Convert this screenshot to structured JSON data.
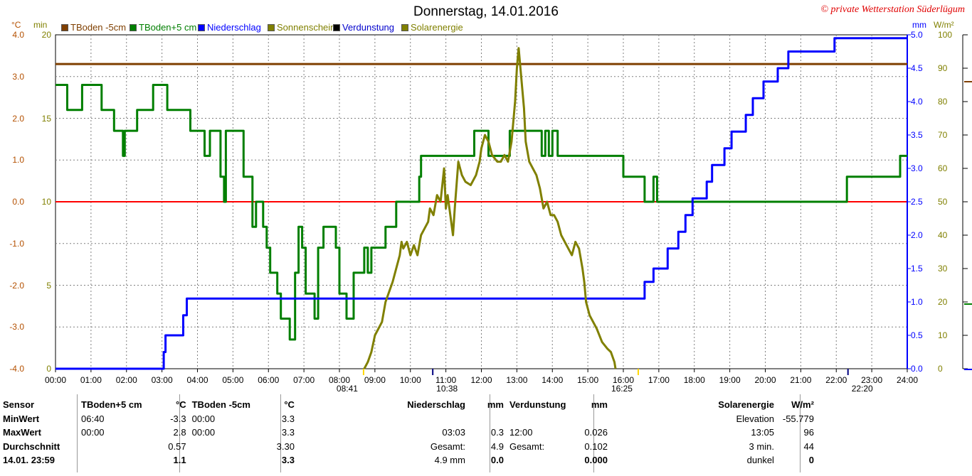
{
  "page": {
    "title": "Donnerstag, 14.01.2016",
    "copyright": "© private Wetterstation Süderlügum"
  },
  "units": {
    "celsius": "°C",
    "minutes": "min",
    "mm": "mm",
    "wm2": "W/m²"
  },
  "legend": [
    {
      "label": "TBoden -5cm",
      "color": "#7f3f00"
    },
    {
      "label": "TBoden+5 cm",
      "color": "#007f00"
    },
    {
      "label": "Niederschlag",
      "color": "#0000ff"
    },
    {
      "label": "Sonnenschein",
      "color": "#808000"
    },
    {
      "label": "Verdunstung",
      "color": "#000000"
    },
    {
      "label": "Solarenergie",
      "color": "#808000"
    }
  ],
  "chart_data": {
    "type": "line",
    "x_ticks": [
      "00:00",
      "01:00",
      "02:00",
      "03:00",
      "04:00",
      "05:00",
      "06:00",
      "07:00",
      "08:00",
      "09:00",
      "10:00",
      "11:00",
      "12:00",
      "13:00",
      "14:00",
      "15:00",
      "16:00",
      "17:00",
      "18:00",
      "19:00",
      "20:00",
      "21:00",
      "22:00",
      "23:00",
      "24:00"
    ],
    "y_left_celsius_ticks": [
      "4.0",
      "3.0",
      "2.0",
      "1.0",
      "0.0",
      "-1.0",
      "-2.0",
      "-3.0",
      "-4.0"
    ],
    "y_left_minutes_ticks": [
      "20",
      "15",
      "10",
      "5",
      "0"
    ],
    "y_right_mm_ticks": [
      "5.0",
      "4.5",
      "4.0",
      "3.5",
      "3.0",
      "2.5",
      "2.0",
      "1.5",
      "1.0",
      "0.5",
      "0.0"
    ],
    "y_right_wm2_ticks": [
      "100",
      "90",
      "80",
      "70",
      "60",
      "50",
      "40",
      "30",
      "20",
      "10",
      "0"
    ],
    "ylim_celsius": [
      -4,
      4
    ],
    "ylim_minutes": [
      0,
      20
    ],
    "ylim_mm": [
      0,
      5
    ],
    "ylim_wm2": [
      0,
      100
    ],
    "grid": true,
    "series": [
      {
        "name": "TBoden -5cm",
        "axis": "celsius",
        "color": "#7f3f00",
        "points": [
          [
            0,
            3.3
          ],
          [
            24,
            3.3
          ]
        ]
      },
      {
        "name": "TBoden+5 cm",
        "axis": "celsius",
        "color": "#007f00",
        "points": [
          [
            0,
            2.8
          ],
          [
            0.33,
            2.8
          ],
          [
            0.33,
            2.2
          ],
          [
            0.75,
            2.2
          ],
          [
            0.75,
            2.8
          ],
          [
            1.3,
            2.8
          ],
          [
            1.3,
            2.2
          ],
          [
            1.65,
            2.2
          ],
          [
            1.65,
            1.7
          ],
          [
            1.9,
            1.7
          ],
          [
            1.9,
            1.1
          ],
          [
            1.95,
            1.1
          ],
          [
            1.95,
            1.7
          ],
          [
            2.3,
            1.7
          ],
          [
            2.3,
            2.2
          ],
          [
            2.75,
            2.2
          ],
          [
            2.75,
            2.8
          ],
          [
            3.15,
            2.8
          ],
          [
            3.15,
            2.2
          ],
          [
            3.8,
            2.2
          ],
          [
            3.8,
            1.7
          ],
          [
            4.2,
            1.7
          ],
          [
            4.2,
            1.1
          ],
          [
            4.35,
            1.1
          ],
          [
            4.35,
            1.7
          ],
          [
            4.65,
            1.7
          ],
          [
            4.65,
            0.6
          ],
          [
            4.75,
            0.6
          ],
          [
            4.75,
            0.0
          ],
          [
            4.8,
            0.0
          ],
          [
            4.8,
            1.7
          ],
          [
            5.3,
            1.7
          ],
          [
            5.3,
            0.6
          ],
          [
            5.55,
            0.6
          ],
          [
            5.55,
            -0.6
          ],
          [
            5.65,
            -0.6
          ],
          [
            5.65,
            0.0
          ],
          [
            5.85,
            0.0
          ],
          [
            5.85,
            -0.6
          ],
          [
            5.95,
            -0.6
          ],
          [
            5.95,
            -1.1
          ],
          [
            6.05,
            -1.1
          ],
          [
            6.05,
            -1.7
          ],
          [
            6.25,
            -1.7
          ],
          [
            6.25,
            -2.2
          ],
          [
            6.35,
            -2.2
          ],
          [
            6.35,
            -2.8
          ],
          [
            6.6,
            -2.8
          ],
          [
            6.6,
            -3.3
          ],
          [
            6.75,
            -3.3
          ],
          [
            6.75,
            -1.7
          ],
          [
            6.85,
            -1.7
          ],
          [
            6.85,
            -0.6
          ],
          [
            6.95,
            -0.6
          ],
          [
            6.95,
            -1.1
          ],
          [
            7.05,
            -1.1
          ],
          [
            7.05,
            -2.2
          ],
          [
            7.3,
            -2.2
          ],
          [
            7.3,
            -2.8
          ],
          [
            7.4,
            -2.8
          ],
          [
            7.4,
            -1.1
          ],
          [
            7.55,
            -1.1
          ],
          [
            7.55,
            -0.6
          ],
          [
            7.9,
            -0.6
          ],
          [
            7.9,
            -1.1
          ],
          [
            8.0,
            -1.1
          ],
          [
            8.0,
            -2.2
          ],
          [
            8.2,
            -2.2
          ],
          [
            8.2,
            -2.8
          ],
          [
            8.4,
            -2.8
          ],
          [
            8.4,
            -1.7
          ],
          [
            8.7,
            -1.7
          ],
          [
            8.7,
            -1.1
          ],
          [
            8.8,
            -1.1
          ],
          [
            8.8,
            -1.7
          ],
          [
            8.9,
            -1.7
          ],
          [
            8.9,
            -1.1
          ],
          [
            9.3,
            -1.1
          ],
          [
            9.3,
            -0.6
          ],
          [
            9.6,
            -0.6
          ],
          [
            9.6,
            0.0
          ],
          [
            10.25,
            0.0
          ],
          [
            10.25,
            0.6
          ],
          [
            10.3,
            0.6
          ],
          [
            10.3,
            1.1
          ],
          [
            11.8,
            1.1
          ],
          [
            11.8,
            1.7
          ],
          [
            12.2,
            1.7
          ],
          [
            12.2,
            1.1
          ],
          [
            12.8,
            1.1
          ],
          [
            12.8,
            1.7
          ],
          [
            13.7,
            1.7
          ],
          [
            13.7,
            1.1
          ],
          [
            13.8,
            1.1
          ],
          [
            13.8,
            1.7
          ],
          [
            13.9,
            1.7
          ],
          [
            13.9,
            1.1
          ],
          [
            14.0,
            1.1
          ],
          [
            14.0,
            1.7
          ],
          [
            14.15,
            1.7
          ],
          [
            14.15,
            1.1
          ],
          [
            16.0,
            1.1
          ],
          [
            16.0,
            0.6
          ],
          [
            16.6,
            0.6
          ],
          [
            16.6,
            0.0
          ],
          [
            16.85,
            0.0
          ],
          [
            16.85,
            0.6
          ],
          [
            16.95,
            0.6
          ],
          [
            16.95,
            0.0
          ],
          [
            22.3,
            0.0
          ],
          [
            22.3,
            0.6
          ],
          [
            23.8,
            0.6
          ],
          [
            23.8,
            1.1
          ],
          [
            24,
            1.1
          ]
        ]
      },
      {
        "name": "Niederschlag",
        "axis": "mm",
        "color": "#0000ff",
        "points": [
          [
            0,
            0
          ],
          [
            3.05,
            0
          ],
          [
            3.05,
            0.25
          ],
          [
            3.1,
            0.25
          ],
          [
            3.1,
            0.5
          ],
          [
            3.6,
            0.5
          ],
          [
            3.6,
            0.8
          ],
          [
            3.7,
            0.8
          ],
          [
            3.7,
            1.05
          ],
          [
            16.6,
            1.05
          ],
          [
            16.6,
            1.3
          ],
          [
            16.85,
            1.3
          ],
          [
            16.85,
            1.5
          ],
          [
            17.25,
            1.5
          ],
          [
            17.25,
            1.8
          ],
          [
            17.55,
            1.8
          ],
          [
            17.55,
            2.05
          ],
          [
            17.75,
            2.05
          ],
          [
            17.75,
            2.3
          ],
          [
            17.95,
            2.3
          ],
          [
            17.95,
            2.55
          ],
          [
            18.35,
            2.55
          ],
          [
            18.35,
            2.8
          ],
          [
            18.5,
            2.8
          ],
          [
            18.5,
            3.05
          ],
          [
            18.85,
            3.05
          ],
          [
            18.85,
            3.3
          ],
          [
            19.05,
            3.3
          ],
          [
            19.05,
            3.55
          ],
          [
            19.45,
            3.55
          ],
          [
            19.45,
            3.8
          ],
          [
            19.65,
            3.8
          ],
          [
            19.65,
            4.05
          ],
          [
            19.95,
            4.05
          ],
          [
            19.95,
            4.3
          ],
          [
            20.35,
            4.3
          ],
          [
            20.35,
            4.5
          ],
          [
            20.65,
            4.5
          ],
          [
            20.65,
            4.75
          ],
          [
            21.95,
            4.75
          ],
          [
            21.95,
            4.95
          ],
          [
            24,
            4.95
          ]
        ]
      },
      {
        "name": "Solarenergie",
        "axis": "wm2",
        "color": "#808000",
        "points": [
          [
            8.7,
            0
          ],
          [
            8.8,
            2
          ],
          [
            8.9,
            5
          ],
          [
            9.0,
            10
          ],
          [
            9.2,
            14
          ],
          [
            9.3,
            20
          ],
          [
            9.5,
            26
          ],
          [
            9.6,
            30
          ],
          [
            9.7,
            34
          ],
          [
            9.75,
            38
          ],
          [
            9.8,
            36
          ],
          [
            9.9,
            38
          ],
          [
            10.0,
            34
          ],
          [
            10.1,
            37
          ],
          [
            10.2,
            34
          ],
          [
            10.3,
            40
          ],
          [
            10.4,
            42
          ],
          [
            10.5,
            44
          ],
          [
            10.55,
            48
          ],
          [
            10.65,
            46
          ],
          [
            10.75,
            52
          ],
          [
            10.85,
            50
          ],
          [
            10.95,
            60
          ],
          [
            11.0,
            48
          ],
          [
            11.05,
            52
          ],
          [
            11.15,
            44
          ],
          [
            11.2,
            40
          ],
          [
            11.25,
            48
          ],
          [
            11.35,
            62
          ],
          [
            11.45,
            58
          ],
          [
            11.55,
            56
          ],
          [
            11.7,
            55
          ],
          [
            11.85,
            58
          ],
          [
            11.95,
            62
          ],
          [
            12.0,
            66
          ],
          [
            12.1,
            70
          ],
          [
            12.2,
            68
          ],
          [
            12.3,
            64
          ],
          [
            12.45,
            62
          ],
          [
            12.55,
            62
          ],
          [
            12.65,
            64
          ],
          [
            12.75,
            62
          ],
          [
            12.85,
            68
          ],
          [
            12.95,
            80
          ],
          [
            13.0,
            90
          ],
          [
            13.05,
            96
          ],
          [
            13.1,
            90
          ],
          [
            13.2,
            78
          ],
          [
            13.25,
            68
          ],
          [
            13.35,
            62
          ],
          [
            13.45,
            60
          ],
          [
            13.55,
            58
          ],
          [
            13.65,
            54
          ],
          [
            13.75,
            48
          ],
          [
            13.85,
            50
          ],
          [
            13.95,
            46
          ],
          [
            14.05,
            46
          ],
          [
            14.15,
            44
          ],
          [
            14.25,
            40
          ],
          [
            14.35,
            38
          ],
          [
            14.45,
            36
          ],
          [
            14.55,
            34
          ],
          [
            14.65,
            38
          ],
          [
            14.75,
            36
          ],
          [
            14.85,
            30
          ],
          [
            14.9,
            26
          ],
          [
            14.95,
            20
          ],
          [
            15.05,
            16
          ],
          [
            15.15,
            14
          ],
          [
            15.25,
            12
          ],
          [
            15.4,
            8
          ],
          [
            15.55,
            6
          ],
          [
            15.65,
            5
          ],
          [
            15.75,
            2
          ],
          [
            15.78,
            0
          ]
        ]
      }
    ],
    "events": [
      {
        "time_label": "08:41",
        "hour": 8.68,
        "kind": "sunrise"
      },
      {
        "time_label": "10:38",
        "hour": 10.63,
        "kind": "event"
      },
      {
        "time_label": "16:25",
        "hour": 16.42,
        "kind": "sunset"
      },
      {
        "time_label": "22:20",
        "hour": 22.33,
        "kind": "event"
      }
    ]
  },
  "stats": {
    "rows": [
      [
        "Sensor",
        "TBoden+5 cm",
        "°C",
        "TBoden -5cm",
        "°C",
        "Niederschlag",
        "mm",
        "Verdunstung",
        "mm",
        "Solarenergie",
        "W/m²"
      ],
      [
        "MinWert",
        "06:40",
        "-3.3",
        "00:00",
        "3.3",
        "",
        "",
        "",
        "",
        "Elevation",
        "-55.779"
      ],
      [
        "MaxWert",
        "00:00",
        "2.8",
        "00:00",
        "3.3",
        "03:03",
        "0.3",
        "12:00",
        "0.026",
        "13:05",
        "96"
      ],
      [
        "Durchschnitt",
        "",
        "0.57",
        "",
        "3.30",
        "Gesamt:",
        "4.9",
        "Gesamt:",
        "0.102",
        "3 min.",
        "44"
      ],
      [
        "14.01. 23:59",
        "",
        "1.1",
        "",
        "3.3",
        "4.9 mm",
        "0.0",
        "",
        "0.000",
        "dunkel",
        "0"
      ]
    ]
  }
}
